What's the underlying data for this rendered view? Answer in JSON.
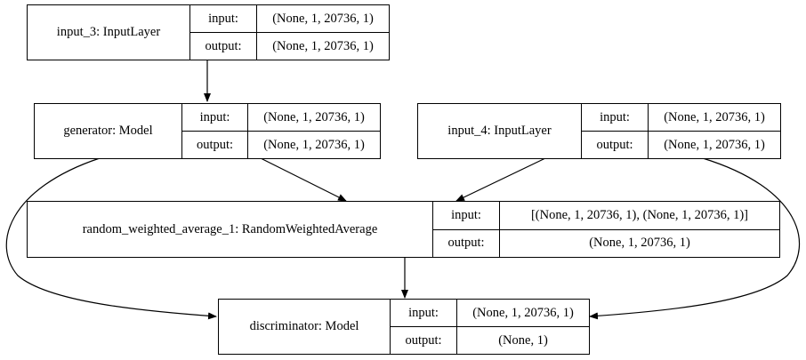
{
  "io_labels": {
    "input": "input:",
    "output": "output:"
  },
  "nodes": {
    "input_3": {
      "name": "input_3: InputLayer",
      "input_shape": "(None, 1, 20736, 1)",
      "output_shape": "(None, 1, 20736, 1)"
    },
    "generator": {
      "name": "generator: Model",
      "input_shape": "(None, 1, 20736, 1)",
      "output_shape": "(None, 1, 20736, 1)"
    },
    "input_4": {
      "name": "input_4: InputLayer",
      "input_shape": "(None, 1, 20736, 1)",
      "output_shape": "(None, 1, 20736, 1)"
    },
    "random_weighted_average_1": {
      "name": "random_weighted_average_1: RandomWeightedAverage",
      "input_shape": "[(None, 1, 20736, 1), (None, 1, 20736, 1)]",
      "output_shape": "(None, 1, 20736, 1)"
    },
    "discriminator": {
      "name": "discriminator: Model",
      "input_shape": "(None, 1, 20736, 1)",
      "output_shape": "(None, 1)"
    }
  },
  "edges": [
    {
      "from": "input_3",
      "to": "generator"
    },
    {
      "from": "generator",
      "to": "random_weighted_average_1"
    },
    {
      "from": "input_4",
      "to": "random_weighted_average_1"
    },
    {
      "from": "random_weighted_average_1",
      "to": "discriminator"
    },
    {
      "from": "generator",
      "to": "discriminator"
    },
    {
      "from": "input_4",
      "to": "discriminator"
    }
  ]
}
